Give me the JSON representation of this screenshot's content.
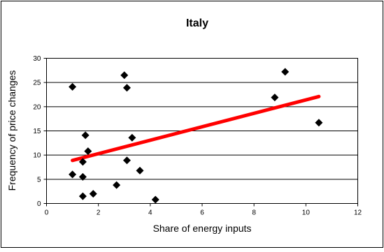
{
  "chart_data": {
    "type": "scatter",
    "title": "Italy",
    "xlabel": "Share of energy inputs",
    "ylabel": "Frequency of price changes",
    "xlim": [
      0,
      12
    ],
    "ylim": [
      0,
      30
    ],
    "x_ticks": [
      0,
      2,
      4,
      6,
      8,
      10,
      12
    ],
    "y_ticks": [
      0,
      5,
      10,
      15,
      20,
      25,
      30
    ],
    "grid": "horizontal",
    "legend": "none",
    "marker": "diamond",
    "points": [
      {
        "x": 1.0,
        "y": 24.1
      },
      {
        "x": 1.0,
        "y": 6.0
      },
      {
        "x": 1.4,
        "y": 8.6
      },
      {
        "x": 1.4,
        "y": 5.5
      },
      {
        "x": 1.4,
        "y": 1.5
      },
      {
        "x": 1.5,
        "y": 14.1
      },
      {
        "x": 1.6,
        "y": 10.8
      },
      {
        "x": 1.8,
        "y": 2.0
      },
      {
        "x": 2.7,
        "y": 3.8
      },
      {
        "x": 3.0,
        "y": 26.5
      },
      {
        "x": 3.1,
        "y": 23.9
      },
      {
        "x": 3.1,
        "y": 8.9
      },
      {
        "x": 3.3,
        "y": 13.6
      },
      {
        "x": 3.6,
        "y": 6.8
      },
      {
        "x": 4.2,
        "y": 0.8
      },
      {
        "x": 8.8,
        "y": 21.9
      },
      {
        "x": 9.2,
        "y": 27.2
      },
      {
        "x": 10.5,
        "y": 16.7
      }
    ],
    "trendline": {
      "x": [
        1.0,
        10.5
      ],
      "y": [
        8.9,
        22.1
      ],
      "color": "#ff0000"
    },
    "marker_color": "#000000"
  }
}
